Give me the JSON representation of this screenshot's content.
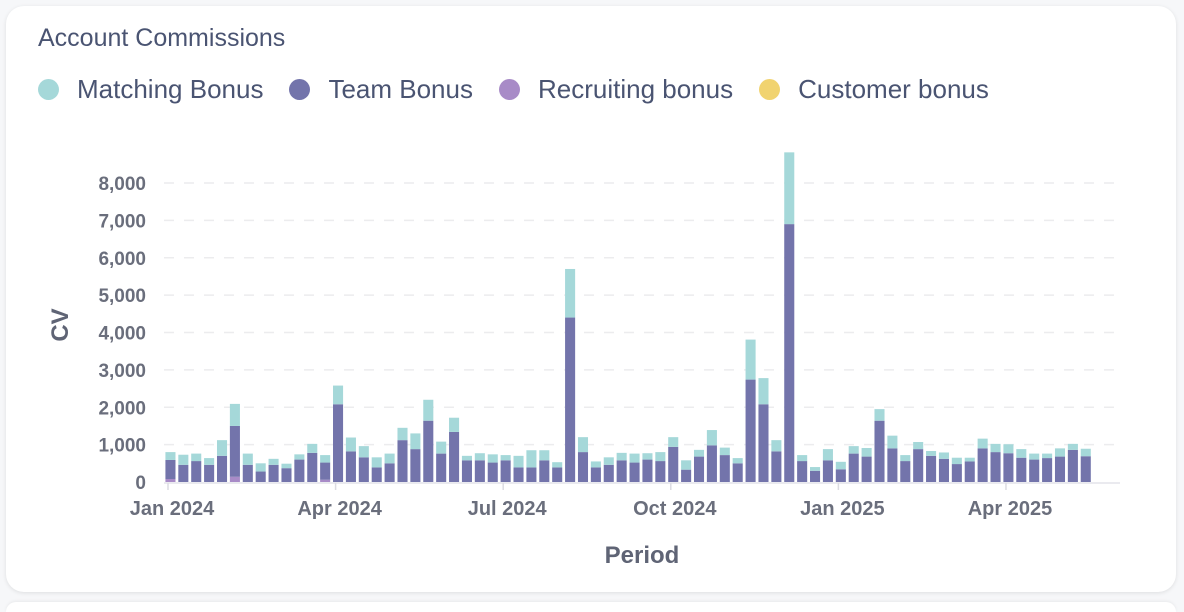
{
  "card": {
    "title": "Account Commissions"
  },
  "legend": [
    {
      "label": "Matching Bonus",
      "color": "#a5d8d9"
    },
    {
      "label": "Team Bonus",
      "color": "#7374ab"
    },
    {
      "label": "Recruiting bonus",
      "color": "#a88bc7"
    },
    {
      "label": "Customer bonus",
      "color": "#f1d36f"
    }
  ],
  "chart_data": {
    "type": "bar",
    "stacked": true,
    "title": "Account Commissions",
    "xlabel": "Period",
    "ylabel": "CV",
    "ylim": [
      0,
      8000
    ],
    "yticks": [
      0,
      1000,
      2000,
      3000,
      4000,
      5000,
      6000,
      7000,
      8000
    ],
    "ytick_labels": [
      "0",
      "1,000",
      "2,000",
      "3,000",
      "4,000",
      "5,000",
      "6,000",
      "7,000",
      "8,000"
    ],
    "xtick_labels": [
      "Jan 2024",
      "Apr 2024",
      "Jul 2024",
      "Oct 2024",
      "Jan 2025",
      "Apr 2025"
    ],
    "xtick_positions": [
      0,
      13,
      26,
      39,
      52,
      65
    ],
    "grid": "horizontal-dashed",
    "legend_position": "top-left",
    "categories_count": 74,
    "series": [
      {
        "name": "Recruiting bonus",
        "color": "#a88bc7",
        "values": [
          80,
          0,
          0,
          0,
          0,
          140,
          0,
          0,
          0,
          0,
          0,
          0,
          60,
          0,
          0,
          0,
          0,
          0,
          0,
          0,
          0,
          0,
          0,
          0,
          0,
          0,
          0,
          0,
          0,
          0,
          0,
          0,
          0,
          0,
          0,
          0,
          0,
          0,
          0,
          0,
          0,
          0,
          0,
          0,
          0,
          0,
          0,
          0,
          0,
          0,
          0,
          0,
          0,
          0,
          0,
          0,
          0,
          0,
          0,
          0,
          0,
          0,
          0,
          0,
          0,
          0,
          0,
          0,
          0,
          0,
          0,
          0,
          0,
          0
        ]
      },
      {
        "name": "Team Bonus",
        "color": "#7374ab",
        "values": [
          510,
          460,
          560,
          460,
          700,
          1360,
          460,
          280,
          460,
          370,
          600,
          780,
          460,
          2080,
          820,
          660,
          390,
          500,
          1120,
          880,
          1640,
          760,
          1340,
          580,
          580,
          520,
          580,
          390,
          390,
          580,
          390,
          4400,
          800,
          390,
          460,
          580,
          520,
          600,
          560,
          940,
          330,
          680,
          980,
          720,
          500,
          2740,
          2080,
          820,
          6900,
          560,
          300,
          580,
          340,
          760,
          680,
          1640,
          900,
          560,
          880,
          700,
          620,
          480,
          550,
          900,
          800,
          770,
          650,
          600,
          640,
          680,
          860,
          690,
          0,
          0
        ]
      },
      {
        "name": "Matching Bonus",
        "color": "#a5d8d9",
        "values": [
          210,
          270,
          200,
          180,
          420,
          590,
          300,
          220,
          160,
          120,
          140,
          240,
          200,
          500,
          370,
          300,
          270,
          260,
          330,
          420,
          560,
          320,
          380,
          120,
          190,
          220,
          140,
          310,
          460,
          270,
          140,
          1300,
          400,
          160,
          200,
          200,
          240,
          170,
          240,
          260,
          250,
          180,
          410,
          200,
          140,
          1070,
          700,
          300,
          1920,
          160,
          100,
          300,
          200,
          200,
          230,
          310,
          340,
          160,
          190,
          130,
          170,
          170,
          100,
          260,
          220,
          240,
          230,
          160,
          120,
          220,
          160,
          200,
          0,
          0
        ]
      },
      {
        "name": "Customer bonus",
        "color": "#f1d36f",
        "values": [
          0,
          0,
          0,
          0,
          0,
          0,
          0,
          0,
          0,
          0,
          0,
          0,
          0,
          0,
          0,
          0,
          0,
          0,
          0,
          0,
          0,
          0,
          0,
          0,
          0,
          0,
          0,
          0,
          0,
          0,
          0,
          0,
          0,
          0,
          0,
          0,
          0,
          0,
          0,
          0,
          0,
          0,
          0,
          0,
          0,
          0,
          0,
          0,
          0,
          0,
          0,
          0,
          0,
          0,
          0,
          0,
          0,
          0,
          0,
          0,
          0,
          0,
          0,
          0,
          0,
          0,
          0,
          0,
          0,
          0,
          0,
          0,
          0,
          0
        ]
      }
    ]
  }
}
